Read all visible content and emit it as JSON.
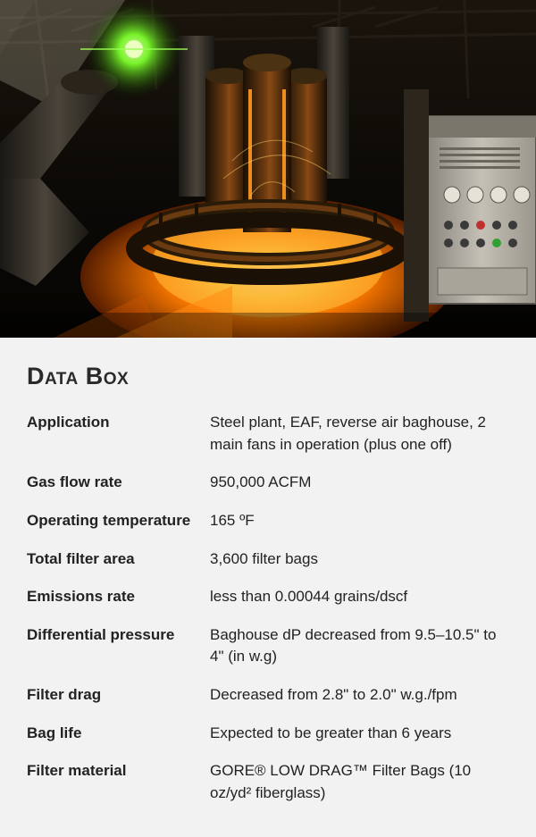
{
  "hero": {
    "bg_dark": "#0b0906",
    "bg_mid": "#1a1208",
    "glow_orange": "#ff7a00",
    "glow_yellow": "#ffdd55",
    "glow_white": "#fff6d0",
    "green_light": "#7cff2a",
    "steel_grey": "#6a6660",
    "panel_grey": "#b8b4ac",
    "pipe_grey": "#3a342c"
  },
  "databox": {
    "title": "Data Box",
    "bg_color": "#f2f2f2",
    "text_color": "#222222",
    "title_fontsize": 27,
    "row_fontsize": 17,
    "label_width": 205,
    "rows": [
      {
        "label": "Application",
        "value": "Steel plant, EAF, reverse air baghouse, 2 main fans in operation (plus one off)"
      },
      {
        "label": "Gas flow rate",
        "value": "950,000 ACFM"
      },
      {
        "label": "Operating temperature",
        "value": "165 ºF"
      },
      {
        "label": "Total filter area",
        "value": "3,600 filter bags"
      },
      {
        "label": "Emissions rate",
        "value": "less than 0.00044 grains/dscf"
      },
      {
        "label": "Differential pressure",
        "value": "Baghouse dP decreased from 9.5–10.5\" to 4\" (in w.g)"
      },
      {
        "label": "Filter drag",
        "value": "Decreased from 2.8\" to 2.0\" w.g./fpm"
      },
      {
        "label": "Bag life",
        "value": "Expected to be greater than 6 years"
      },
      {
        "label": "Filter material",
        "value": "GORE® LOW DRAG™ Filter Bags (10 oz/yd² fiberglass)"
      }
    ]
  }
}
